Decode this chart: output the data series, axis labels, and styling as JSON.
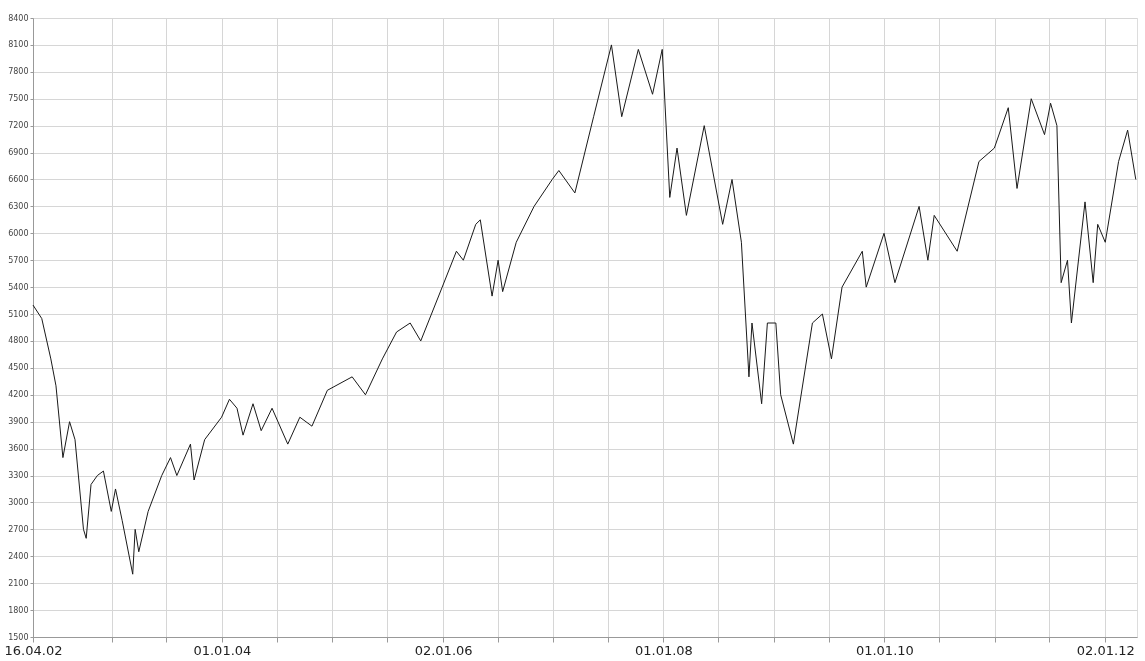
{
  "chart_data": {
    "type": "line",
    "grid": true,
    "xlim": [
      "2002-04-16",
      "2012-04-16"
    ],
    "xticks": [
      {
        "value": "2002-04-16",
        "label": "16.04.02"
      },
      {
        "value": "2003-01-01",
        "label": null
      },
      {
        "value": "2003-07-01",
        "label": null
      },
      {
        "value": "2004-01-01",
        "label": "01.01.04"
      },
      {
        "value": "2004-07-01",
        "label": null
      },
      {
        "value": "2005-01-01",
        "label": null
      },
      {
        "value": "2005-07-01",
        "label": null
      },
      {
        "value": "2006-01-02",
        "label": "02.01.06"
      },
      {
        "value": "2006-07-01",
        "label": null
      },
      {
        "value": "2007-01-01",
        "label": null
      },
      {
        "value": "2007-07-01",
        "label": null
      },
      {
        "value": "2008-01-01",
        "label": "01.01.08"
      },
      {
        "value": "2008-07-01",
        "label": null
      },
      {
        "value": "2009-01-01",
        "label": null
      },
      {
        "value": "2009-07-01",
        "label": null
      },
      {
        "value": "2010-01-01",
        "label": "01.01.10"
      },
      {
        "value": "2010-07-01",
        "label": null
      },
      {
        "value": "2011-01-01",
        "label": null
      },
      {
        "value": "2011-07-01",
        "label": null
      },
      {
        "value": "2012-01-02",
        "label": "02.01.12"
      }
    ],
    "ylim": [
      1500,
      8400
    ],
    "yticks": [
      1500,
      1800,
      2100,
      2400,
      2700,
      3000,
      3300,
      3600,
      3900,
      4200,
      4500,
      4800,
      5100,
      5400,
      5700,
      6000,
      6300,
      6600,
      6900,
      7200,
      7500,
      7800,
      8100,
      8400
    ],
    "series": [
      {
        "color": "#1a1a1a",
        "x": [
          "2002-04-16",
          "2002-05-15",
          "2002-06-14",
          "2002-07-01",
          "2002-07-24",
          "2002-08-15",
          "2002-09-02",
          "2002-09-30",
          "2002-10-09",
          "2002-10-25",
          "2002-11-15",
          "2002-12-05",
          "2002-12-31",
          "2003-01-14",
          "2003-02-05",
          "2003-03-12",
          "2003-03-20",
          "2003-04-01",
          "2003-05-02",
          "2003-06-16",
          "2003-07-15",
          "2003-08-05",
          "2003-09-19",
          "2003-10-01",
          "2003-11-05",
          "2003-12-31",
          "2004-01-26",
          "2004-02-20",
          "2004-03-11",
          "2004-04-13",
          "2004-05-10",
          "2004-06-15",
          "2004-08-06",
          "2004-09-15",
          "2004-10-25",
          "2004-12-15",
          "2005-03-07",
          "2005-04-20",
          "2005-06-15",
          "2005-08-01",
          "2005-09-15",
          "2005-10-20",
          "2005-12-30",
          "2006-02-15",
          "2006-03-10",
          "2006-04-20",
          "2006-05-05",
          "2006-06-13",
          "2006-07-03",
          "2006-07-18",
          "2006-09-01",
          "2006-10-30",
          "2006-12-29",
          "2007-01-20",
          "2007-03-14",
          "2007-05-15",
          "2007-07-13",
          "2007-08-16",
          "2007-10-10",
          "2007-11-26",
          "2007-12-28",
          "2008-01-22",
          "2008-02-15",
          "2008-03-17",
          "2008-05-15",
          "2008-07-15",
          "2008-08-15",
          "2008-09-15",
          "2008-10-10",
          "2008-10-20",
          "2008-11-21",
          "2008-12-10",
          "2009-01-07",
          "2009-01-23",
          "2009-03-06",
          "2009-05-08",
          "2009-06-10",
          "2009-07-10",
          "2009-08-14",
          "2009-10-20",
          "2009-11-02",
          "2009-12-31",
          "2010-02-05",
          "2010-04-26",
          "2010-05-25",
          "2010-06-15",
          "2010-08-30",
          "2010-11-10",
          "2010-12-31",
          "2011-02-15",
          "2011-03-16",
          "2011-05-02",
          "2011-06-15",
          "2011-07-05",
          "2011-07-26",
          "2011-08-09",
          "2011-08-30",
          "2011-09-12",
          "2011-10-27",
          "2011-11-23",
          "2011-12-08",
          "2012-01-02",
          "2012-02-15",
          "2012-03-16",
          "2012-04-12"
        ],
        "values": [
          5200,
          5050,
          4600,
          4300,
          3500,
          3900,
          3700,
          2700,
          2600,
          3200,
          3300,
          3350,
          2900,
          3150,
          2800,
          2200,
          2700,
          2450,
          2900,
          3300,
          3500,
          3300,
          3650,
          3250,
          3700,
          3950,
          4150,
          4050,
          3750,
          4100,
          3800,
          4050,
          3650,
          3950,
          3850,
          4250,
          4400,
          4200,
          4600,
          4900,
          5000,
          4800,
          5400,
          5800,
          5700,
          6100,
          6150,
          5300,
          5700,
          5350,
          5900,
          6300,
          6600,
          6700,
          6450,
          7300,
          8100,
          7300,
          8050,
          7550,
          8050,
          6400,
          6950,
          6200,
          7200,
          6100,
          6600,
          5900,
          4400,
          5000,
          4100,
          5000,
          5000,
          4200,
          3650,
          5000,
          5100,
          4600,
          5400,
          5800,
          5400,
          6000,
          5450,
          6300,
          5700,
          6200,
          5800,
          6800,
          6950,
          7400,
          6500,
          7500,
          7100,
          7450,
          7200,
          5450,
          5700,
          5000,
          6350,
          5450,
          6100,
          5900,
          6800,
          7150,
          6600
        ]
      }
    ]
  }
}
